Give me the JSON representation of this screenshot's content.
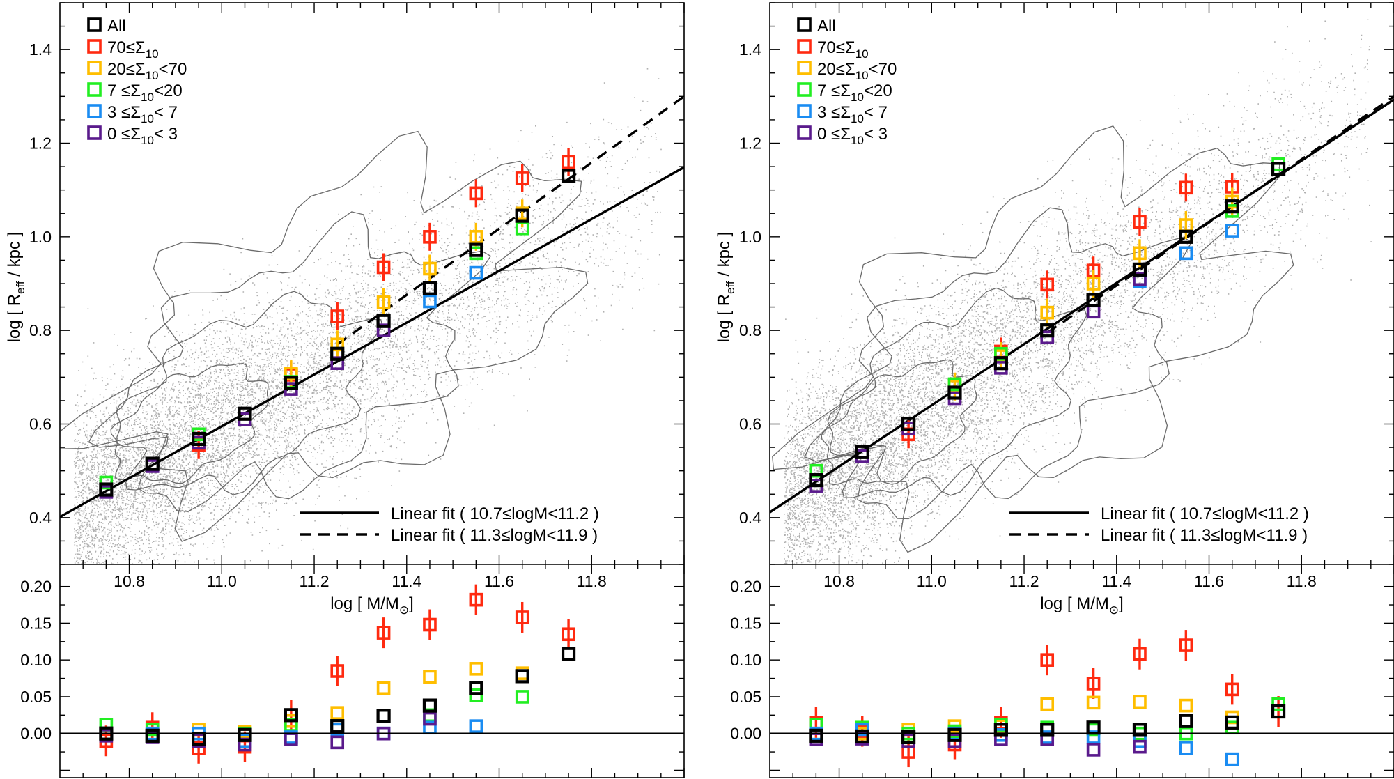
{
  "colors": {
    "all": "#000000",
    "s70": "#ff2a10",
    "s20": "#ffbe00",
    "s7": "#22ee22",
    "s3": "#1a8cf2",
    "s0": "#5a1a8c",
    "scatter": "#b0b0b0",
    "contour": "#6a6a6a"
  },
  "legend": [
    {
      "key": "all",
      "label": "All"
    },
    {
      "key": "s70",
      "label": "70≤Σ10"
    },
    {
      "key": "s20",
      "label": "20≤Σ10<70"
    },
    {
      "key": "s7",
      "label": "7 ≤Σ10<20"
    },
    {
      "key": "s3",
      "label": "3 ≤Σ10< 7"
    },
    {
      "key": "s0",
      "label": "0 ≤Σ10< 3"
    }
  ],
  "fit_legend": {
    "solid": "Linear fit ( 10.7≤logM<11.2 )",
    "dashed": "Linear fit ( 11.3≤logM<11.9 )"
  },
  "chart_data": [
    {
      "type": "scatter",
      "panel": "left",
      "xlabel": "log [ M/M⊙]",
      "ylabel": "log [ Reff / kpc ]",
      "xlim": [
        10.65,
        12.0
      ],
      "ylim_top": [
        0.3,
        1.5
      ],
      "ylim_bottom": [
        -0.06,
        0.23
      ],
      "x_ticks": [
        "10.8",
        "11.0",
        "11.2",
        "11.4",
        "11.6",
        "11.8"
      ],
      "y_ticks_top": [
        "0.4",
        "0.6",
        "0.8",
        "1.0",
        "1.2",
        "1.4"
      ],
      "y_ticks_bottom": [
        "0.00",
        "0.05",
        "0.10",
        "0.15",
        "0.20"
      ],
      "fit_solid": {
        "slope": 0.5535,
        "intercept": 0.4567,
        "x0": 10.75
      },
      "fit_dashed": {
        "from": [
          11.25,
          0.77
        ],
        "to": [
          12.0,
          1.3
        ]
      },
      "x": [
        10.75,
        10.85,
        10.95,
        11.05,
        11.15,
        11.25,
        11.35,
        11.45,
        11.55,
        11.65,
        11.75
      ],
      "series": [
        {
          "name": "All",
          "key": "all",
          "y": [
            0.46,
            0.515,
            0.568,
            0.622,
            0.688,
            0.75,
            0.82,
            0.89,
            0.972,
            1.045,
            1.13
          ],
          "dy": [
            0.0,
            -0.003,
            -0.007,
            -0.002,
            0.025,
            0.01,
            0.024,
            0.038,
            0.062,
            0.078,
            0.108
          ]
        },
        {
          "name": "70≤Σ10",
          "key": "s70",
          "y": [
            null,
            null,
            0.555,
            null,
            0.705,
            0.83,
            0.935,
            1.0,
            1.093,
            1.125,
            1.16
          ],
          "dy": [
            -0.01,
            0.008,
            -0.02,
            -0.018,
            0.025,
            0.085,
            0.137,
            0.148,
            0.182,
            0.158,
            0.135
          ]
        },
        {
          "name": "20≤Σ10<70",
          "key": "s20",
          "y": [
            null,
            null,
            null,
            null,
            0.708,
            0.77,
            0.86,
            0.932,
            1.0,
            1.05,
            null
          ],
          "dy": [
            0.0,
            0.0,
            0.005,
            0.002,
            0.017,
            0.028,
            0.062,
            0.077,
            0.088,
            0.082,
            0.108
          ]
        },
        {
          "name": "7 ≤Σ10<20",
          "key": "s7",
          "y": [
            0.475,
            null,
            0.578,
            null,
            0.69,
            null,
            null,
            null,
            0.965,
            1.018,
            null
          ],
          "dy": [
            0.012,
            0.005,
            -0.008,
            0.0,
            0.012,
            0.01,
            0.024,
            0.025,
            0.052,
            0.05,
            null
          ]
        },
        {
          "name": "3 ≤Σ10< 7",
          "key": "s3",
          "y": [
            null,
            null,
            null,
            null,
            null,
            null,
            null,
            0.862,
            0.923,
            null,
            null
          ],
          "dy": [
            0.0,
            0.0,
            0.0,
            -0.01,
            -0.005,
            0.005,
            0.0,
            0.008,
            0.01,
            null,
            null
          ]
        },
        {
          "name": "0 ≤Σ10< 3",
          "key": "s0",
          "y": [
            0.455,
            0.51,
            0.56,
            0.61,
            0.675,
            0.73,
            0.8,
            null,
            null,
            null,
            null
          ],
          "dy": [
            -0.003,
            -0.005,
            -0.01,
            -0.015,
            -0.008,
            -0.012,
            0.0,
            0.02,
            null,
            null,
            null
          ]
        }
      ]
    },
    {
      "type": "scatter",
      "panel": "right",
      "xlabel": "log [ M/M⊙]",
      "ylabel": "log [ Reff / kpc ]",
      "xlim": [
        10.65,
        12.0
      ],
      "ylim_top": [
        0.3,
        1.5
      ],
      "ylim_bottom": [
        -0.06,
        0.23
      ],
      "x_ticks": [
        "10.8",
        "11.0",
        "11.2",
        "11.4",
        "11.6",
        "11.8"
      ],
      "y_ticks_top": [
        "0.4",
        "0.6",
        "0.8",
        "1.0",
        "1.2",
        "1.4"
      ],
      "y_ticks_bottom": [
        "0.00",
        "0.05",
        "0.10",
        "0.15",
        "0.20"
      ],
      "fit_solid": {
        "slope": 0.6533,
        "intercept": 0.4767,
        "x0": 10.75
      },
      "fit_dashed": {
        "from": [
          11.25,
          0.795
        ],
        "to": [
          12.0,
          1.3
        ]
      },
      "x": [
        10.75,
        10.85,
        10.95,
        11.05,
        11.15,
        11.25,
        11.35,
        11.45,
        11.55,
        11.65,
        11.75
      ],
      "series": [
        {
          "name": "All",
          "key": "all",
          "y": [
            0.48,
            0.54,
            0.6,
            0.667,
            0.73,
            0.8,
            0.865,
            0.93,
            1.0,
            1.065,
            1.145
          ],
          "dy": [
            -0.003,
            -0.004,
            -0.005,
            -0.002,
            0.005,
            0.005,
            0.008,
            0.005,
            0.017,
            0.015,
            0.03
          ]
        },
        {
          "name": "70≤Σ10",
          "key": "s70",
          "y": [
            null,
            null,
            0.578,
            null,
            0.755,
            0.898,
            0.928,
            1.032,
            1.105,
            1.107,
            null
          ],
          "dy": [
            0.015,
            0.003,
            -0.025,
            -0.015,
            0.015,
            0.1,
            0.068,
            0.108,
            0.12,
            0.06,
            0.03
          ]
        },
        {
          "name": "20≤Σ10<70",
          "key": "s20",
          "y": [
            null,
            null,
            null,
            0.68,
            0.745,
            0.838,
            0.9,
            0.965,
            1.025,
            1.075,
            null
          ],
          "dy": [
            0.0,
            0.0,
            0.005,
            0.01,
            0.01,
            0.04,
            0.042,
            0.043,
            0.038,
            0.022,
            null
          ]
        },
        {
          "name": "7 ≤Σ10<20",
          "key": "s7",
          "y": [
            0.5,
            null,
            null,
            0.685,
            0.75,
            null,
            null,
            null,
            null,
            1.055,
            1.155
          ],
          "dy": [
            0.012,
            0.008,
            0.0,
            0.003,
            0.012,
            0.008,
            0.005,
            0.0,
            0.0,
            0.008,
            0.04
          ]
        },
        {
          "name": "3 ≤Σ10< 7",
          "key": "s3",
          "y": [
            null,
            null,
            null,
            null,
            null,
            null,
            null,
            0.905,
            0.965,
            1.013,
            null
          ],
          "dy": [
            0.0,
            0.005,
            -0.005,
            0.0,
            -0.002,
            -0.005,
            -0.005,
            -0.01,
            -0.02,
            -0.035,
            null
          ]
        },
        {
          "name": "0 ≤Σ10< 3",
          "key": "s0",
          "y": [
            0.468,
            0.532,
            0.59,
            0.655,
            0.72,
            0.785,
            0.84,
            0.91,
            null,
            null,
            null
          ],
          "dy": [
            -0.008,
            -0.007,
            -0.01,
            -0.01,
            -0.008,
            -0.008,
            -0.022,
            -0.018,
            null,
            null,
            null
          ]
        }
      ]
    }
  ]
}
